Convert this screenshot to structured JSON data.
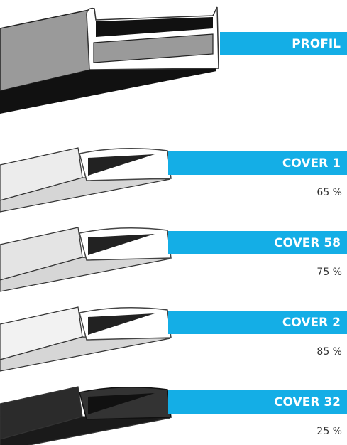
{
  "profile": {
    "label": "PROFIL"
  },
  "covers": [
    {
      "label": "COVER 1",
      "transmission": "65 %",
      "color": "#ececec"
    },
    {
      "label": "COVER 58",
      "transmission": "75 %",
      "color": "#e4e4e4"
    },
    {
      "label": "COVER 2",
      "transmission": "85 %",
      "color": "#f2f2f2"
    },
    {
      "label": "COVER 32",
      "transmission": "25 %",
      "color": "#2b2b2b"
    }
  ]
}
